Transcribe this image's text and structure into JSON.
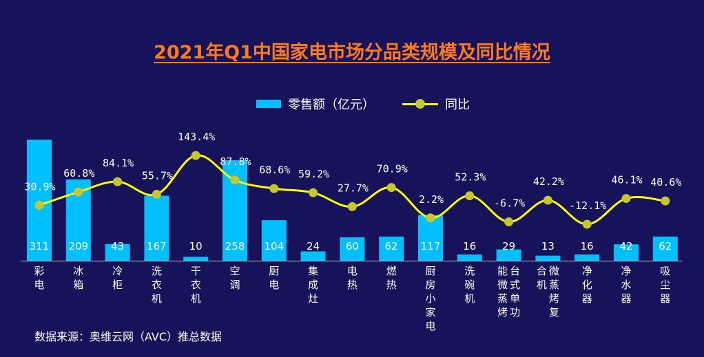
{
  "chart_data": {
    "type": "bar+line",
    "title": "2021年Q1中国家电市场分品类规模及同比情况",
    "categories": [
      "彩电",
      "冰箱",
      "冷柜",
      "洗衣机",
      "干衣机",
      "空调",
      "厨电",
      "集成灶",
      "电热",
      "燃热",
      "厨房小家电",
      "洗碗机",
      "台式单功能微蒸烤",
      "微蒸烤复合机",
      "净化器",
      "净水器",
      "吸尘器"
    ],
    "category_columns": [
      [
        "彩电"
      ],
      [
        "冰箱"
      ],
      [
        "冷柜"
      ],
      [
        "洗衣机"
      ],
      [
        "干衣机"
      ],
      [
        "空调"
      ],
      [
        "厨电"
      ],
      [
        "集成灶"
      ],
      [
        "电热"
      ],
      [
        "燃热"
      ],
      [
        "厨房小家电"
      ],
      [
        "洗碗机"
      ],
      [
        "能微蒸烤",
        "台式单功"
      ],
      [
        "合机",
        "微蒸烤复"
      ],
      [
        "净化器"
      ],
      [
        "净水器"
      ],
      [
        "吸尘器"
      ]
    ],
    "series": [
      {
        "name": "零售额（亿元）",
        "type": "bar",
        "color": "#00bfff",
        "values": [
          311,
          209,
          43,
          167,
          10,
          258,
          104,
          24,
          60,
          62,
          117,
          16,
          29,
          13,
          16,
          42,
          62
        ]
      },
      {
        "name": "同比",
        "type": "line",
        "color": "#ffff00",
        "values": [
          30.9,
          60.8,
          84.1,
          55.7,
          143.4,
          87.8,
          68.6,
          59.2,
          27.7,
          70.9,
          2.2,
          52.3,
          -6.7,
          42.2,
          -12.1,
          46.1,
          40.6
        ],
        "labels": [
          "30.9%",
          "60.8%",
          "84.1%",
          "55.7%",
          "143.4%",
          "87.8%",
          "68.6%",
          "59.2%",
          "27.7%",
          "70.9%",
          "2.2%",
          "52.3%",
          "-6.7%",
          "42.2%",
          "-12.1%",
          "46.1%",
          "40.6%"
        ]
      }
    ],
    "legend_position": "top-center",
    "grid": false
  },
  "source": "数据来源：奥维云网（AVC）推总数据"
}
